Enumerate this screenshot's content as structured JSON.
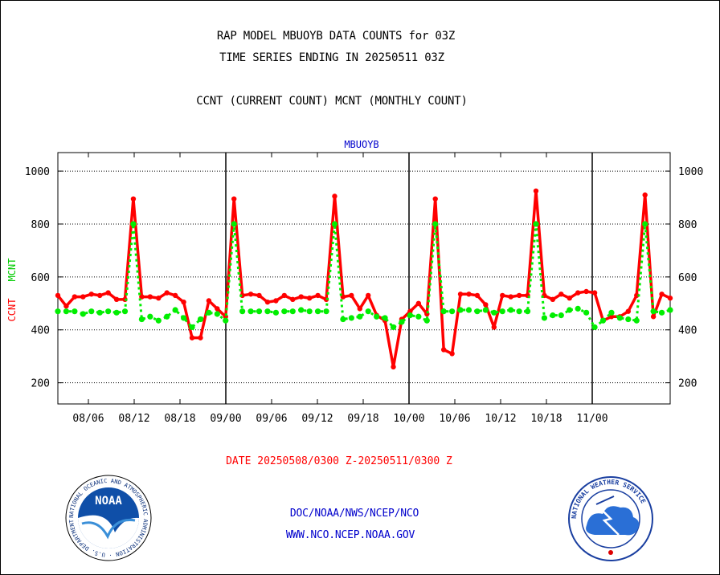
{
  "header": {
    "title_line1": "RAP MODEL MBUOYB DATA COUNTS for 03Z",
    "title_line2": "TIME SERIES ENDING IN 20250511 03Z",
    "subtitle": "CCNT (CURRENT COUNT) MCNT (MONTHLY COUNT)"
  },
  "chart_data": {
    "type": "line",
    "title": "MBUOYB",
    "ylabel_ccnt": "CCNT",
    "ylabel_mcnt": "MCNT",
    "xlabel": "DATE 20250508/0300 Z-20250511/0300 Z",
    "ylim": [
      120,
      1070
    ],
    "y_ticks": [
      200,
      400,
      600,
      800,
      1000
    ],
    "x_ticks": [
      "08/06",
      "08/12",
      "08/18",
      "09/00",
      "09/06",
      "09/12",
      "09/18",
      "10/00",
      "10/06",
      "10/12",
      "10/18",
      "11/00"
    ],
    "grid": "dotted horizontal at 200, 400, 600, 800, 1000; solid vertical at day boundaries 09/00, 10/00, 11/00",
    "colors": {
      "ccnt": "#ff0000",
      "mcnt": "#00ee00",
      "title": "#0000cc",
      "date": "#ff0000",
      "links": "#0000cc"
    },
    "series": [
      {
        "name": "CCNT",
        "values": [
          530,
          490,
          525,
          525,
          535,
          530,
          540,
          515,
          515,
          895,
          525,
          525,
          520,
          540,
          530,
          505,
          370,
          370,
          510,
          480,
          450,
          895,
          530,
          535,
          530,
          505,
          510,
          530,
          515,
          525,
          520,
          530,
          515,
          905,
          525,
          530,
          480,
          530,
          455,
          435,
          260,
          440,
          470,
          500,
          460,
          895,
          325,
          310,
          535,
          535,
          530,
          495,
          410,
          530,
          525,
          530,
          530,
          925,
          530,
          515,
          535,
          520,
          540,
          545,
          540,
          435,
          450,
          450,
          470,
          530,
          910,
          450,
          535,
          520
        ]
      },
      {
        "name": "MCNT",
        "values": [
          470,
          470,
          470,
          460,
          470,
          465,
          470,
          465,
          470,
          800,
          440,
          450,
          435,
          450,
          475,
          445,
          410,
          440,
          465,
          460,
          435,
          800,
          470,
          470,
          470,
          470,
          465,
          470,
          470,
          475,
          470,
          470,
          470,
          800,
          440,
          445,
          450,
          470,
          450,
          445,
          410,
          430,
          455,
          450,
          435,
          800,
          470,
          470,
          475,
          475,
          470,
          475,
          465,
          470,
          475,
          470,
          470,
          800,
          445,
          455,
          455,
          475,
          480,
          465,
          410,
          435,
          465,
          445,
          440,
          435,
          800,
          470,
          465,
          475
        ]
      }
    ]
  },
  "footer": {
    "noaa_logo_text": "NATIONAL OCEANIC AND ATMOSPHERIC ADMINISTRATION · U.S. DEPARTMENT OF COMMERCE",
    "noaa_logo_center": "NOAA",
    "link_line1": "DOC/NOAA/NWS/NCEP/NCO",
    "link_line2": "WWW.NCO.NCEP.NOAA.GOV",
    "nws_logo_text": "NATIONAL WEATHER SERVICE"
  }
}
